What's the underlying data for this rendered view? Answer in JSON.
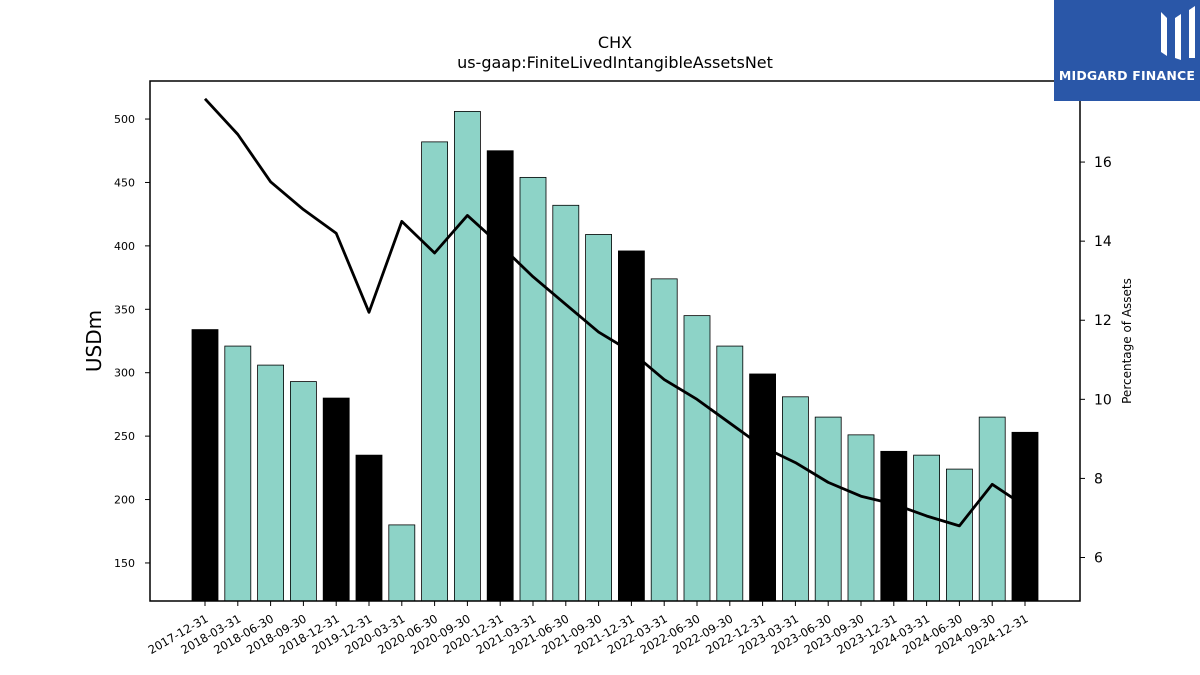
{
  "brand": {
    "name": "MIDGARD FINANCE",
    "bg": "#2a57a8"
  },
  "chart_data": {
    "type": "bar",
    "title": "CHX",
    "subtitle": "us-gaap:FiniteLivedIntangibleAssetsNet",
    "ylabel": "USDm",
    "y2label": "Percentage of Assets",
    "ylim": [
      120,
      530
    ],
    "y2lim": [
      4.9,
      18.05
    ],
    "yticks": [
      150,
      200,
      250,
      300,
      350,
      400,
      450,
      500
    ],
    "y2ticks": [
      6,
      8,
      10,
      12,
      14,
      16
    ],
    "grid": false,
    "categories": [
      "2017-12-31",
      "2018-03-31",
      "2018-06-30",
      "2018-09-30",
      "2018-12-31",
      "2019-12-31",
      "2020-03-31",
      "2020-06-30",
      "2020-09-30",
      "2020-12-31",
      "2021-03-31",
      "2021-06-30",
      "2021-09-30",
      "2021-12-31",
      "2022-03-31",
      "2022-06-30",
      "2022-09-30",
      "2022-12-31",
      "2023-03-31",
      "2023-06-30",
      "2023-09-30",
      "2023-12-31",
      "2024-03-31",
      "2024-06-30",
      "2024-09-30",
      "2024-12-31"
    ],
    "series": [
      {
        "type": "bar",
        "values": [
          334,
          321,
          306,
          293,
          280,
          235,
          180,
          482,
          506,
          475,
          454,
          432,
          409,
          396,
          374,
          345,
          321,
          299,
          281,
          265,
          251,
          238,
          235,
          224,
          265,
          253
        ],
        "highlight": [
          true,
          false,
          false,
          false,
          true,
          true,
          false,
          false,
          false,
          true,
          false,
          false,
          false,
          true,
          false,
          false,
          false,
          true,
          false,
          false,
          false,
          true,
          false,
          false,
          false,
          true
        ],
        "color": "#8dd3c7",
        "highlight_color": "#000000"
      },
      {
        "type": "line",
        "axis": "right",
        "values": [
          17.6,
          16.7,
          15.5,
          14.8,
          14.2,
          12.2,
          14.5,
          13.7,
          14.65,
          13.9,
          13.1,
          12.4,
          11.7,
          11.2,
          10.5,
          10.0,
          9.4,
          8.8,
          8.4,
          7.9,
          7.55,
          7.35,
          7.05,
          6.8,
          7.85,
          7.3
        ],
        "color": "#000000"
      }
    ]
  }
}
